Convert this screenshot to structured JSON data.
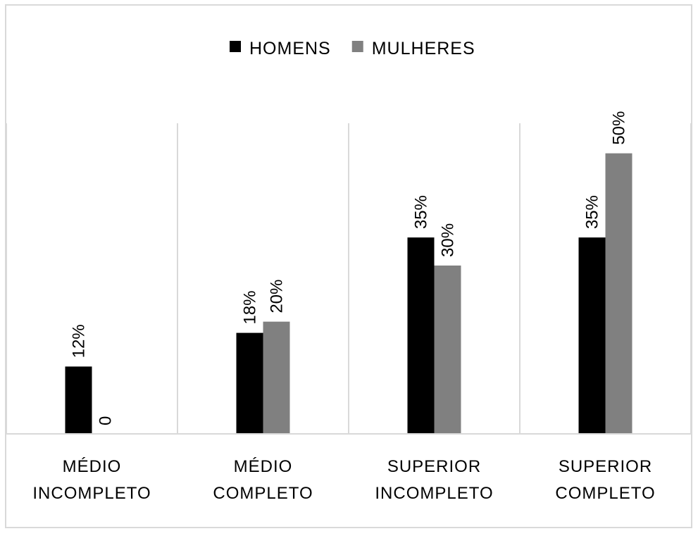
{
  "chart_data": {
    "type": "bar",
    "title": "",
    "xlabel": "",
    "ylabel": "",
    "ylim": [
      0,
      60
    ],
    "grid": false,
    "legend_position": "top",
    "categories": [
      [
        "MÉDIO",
        "INCOMPLETO"
      ],
      [
        "MÉDIO",
        "COMPLETO"
      ],
      [
        "SUPERIOR",
        "INCOMPLETO"
      ],
      [
        "SUPERIOR",
        "COMPLETO"
      ]
    ],
    "series": [
      {
        "name": "HOMENS",
        "color": "#000000",
        "values": [
          12,
          18,
          35,
          35
        ],
        "labels": [
          "12%",
          "18%",
          "35%",
          "35%"
        ]
      },
      {
        "name": "MULHERES",
        "color": "#808080",
        "values": [
          0,
          20,
          30,
          50
        ],
        "labels": [
          "0",
          "20%",
          "30%",
          "50%"
        ]
      }
    ]
  }
}
